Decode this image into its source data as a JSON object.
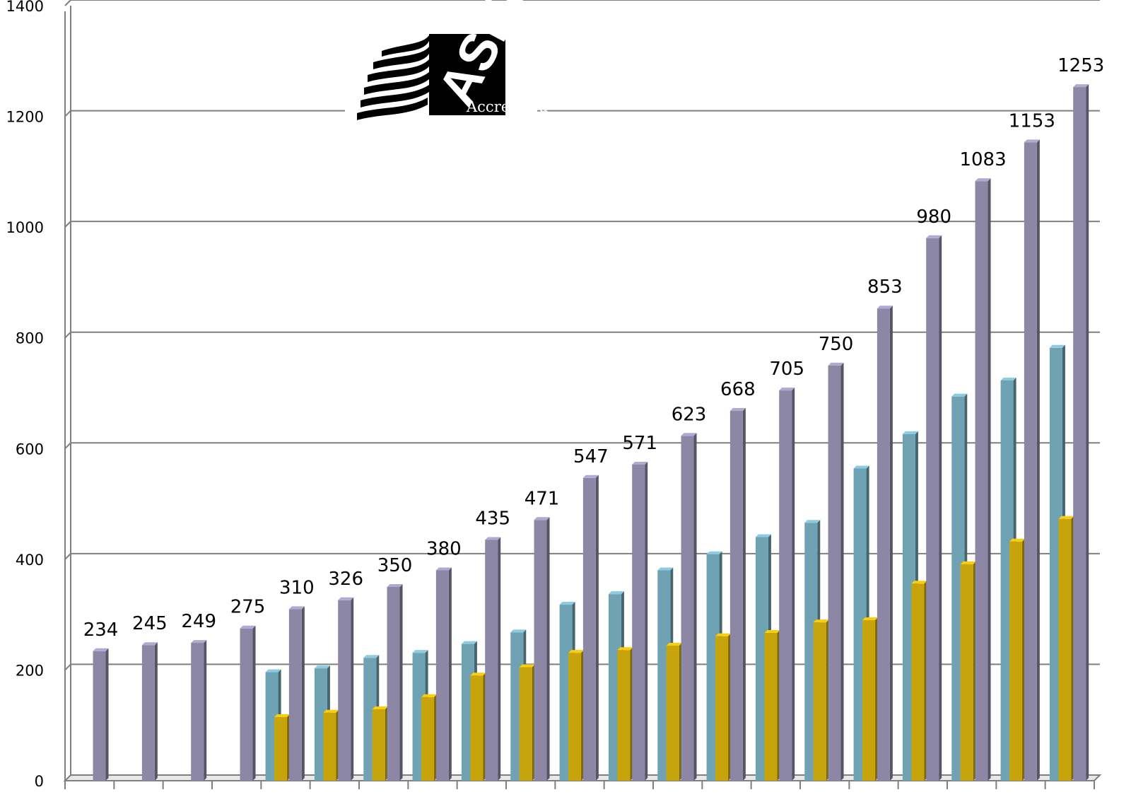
{
  "chart_data": {
    "type": "bar",
    "title": "",
    "xlabel": "",
    "ylabel": "",
    "ylim": [
      0,
      1400
    ],
    "yticks": [
      0,
      200,
      400,
      600,
      800,
      1000,
      1200,
      1400
    ],
    "grid": true,
    "categories": [
      "",
      "",
      "",
      "",
      "",
      "",
      "",
      "",
      "",
      "",
      "",
      "",
      "",
      "",
      "",
      "",
      "",
      "",
      "",
      "",
      ""
    ],
    "series": [
      {
        "color": "#6fa3b3",
        "values": [
          null,
          null,
          null,
          null,
          196,
          203,
          222,
          231,
          247,
          268,
          318,
          337,
          380,
          409,
          440,
          466,
          564,
          626,
          694,
          723,
          782
        ]
      },
      {
        "color": "#c8a40c",
        "values": [
          null,
          null,
          null,
          null,
          115,
          123,
          129,
          151,
          190,
          205,
          231,
          236,
          244,
          261,
          267,
          286,
          290,
          356,
          391,
          432,
          473
        ]
      },
      {
        "color": "#8d87a6",
        "values": [
          234,
          245,
          249,
          275,
          310,
          326,
          350,
          380,
          435,
          471,
          547,
          571,
          623,
          668,
          705,
          750,
          853,
          980,
          1083,
          1153,
          1253
        ],
        "show_labels": true
      }
    ]
  },
  "logo": {
    "name": "ASHP",
    "text": "Accredited",
    "lettering": "ASHP"
  }
}
